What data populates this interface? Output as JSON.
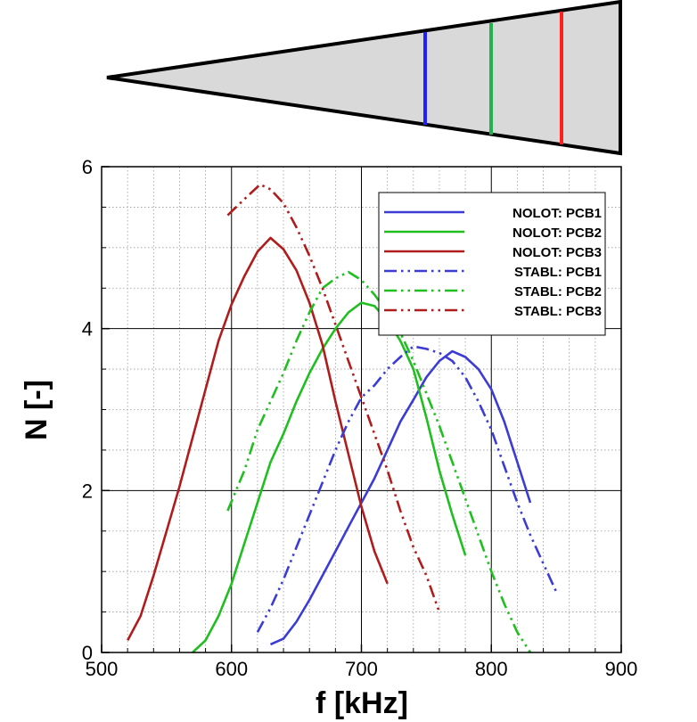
{
  "schematic": {
    "fill": "#d9d9d9",
    "markers": [
      {
        "name": "PCB1",
        "color": "#1f1fff"
      },
      {
        "name": "PCB2",
        "color": "#22b14c"
      },
      {
        "name": "PCB3",
        "color": "#ff1f1f"
      }
    ]
  },
  "chart_data": {
    "type": "line",
    "xlabel": "f [kHz]",
    "ylabel": "N [-]",
    "xlim": [
      500,
      900
    ],
    "ylim": [
      0,
      6
    ],
    "xticks": [
      "500",
      "600",
      "700",
      "800",
      "900"
    ],
    "yticks": [
      "0",
      "2",
      "4",
      "6"
    ],
    "grid": true,
    "legend_position": "top-right",
    "series": [
      {
        "name": "NOLOT: PCB1",
        "color": "#3b3bd6",
        "dash": "solid",
        "x": [
          630,
          640,
          650,
          660,
          670,
          680,
          690,
          700,
          710,
          720,
          730,
          740,
          750,
          760,
          770,
          780,
          790,
          800,
          810,
          820,
          830
        ],
        "y": [
          0.1,
          0.17,
          0.38,
          0.65,
          0.95,
          1.25,
          1.55,
          1.85,
          2.15,
          2.5,
          2.85,
          3.12,
          3.4,
          3.6,
          3.72,
          3.65,
          3.5,
          3.25,
          2.85,
          2.35,
          1.85
        ]
      },
      {
        "name": "NOLOT: PCB2",
        "color": "#1fbf1f",
        "dash": "solid",
        "x": [
          570,
          580,
          590,
          600,
          610,
          620,
          630,
          640,
          650,
          660,
          670,
          680,
          690,
          700,
          710,
          720,
          730,
          740,
          750,
          760,
          770,
          780
        ],
        "y": [
          0.0,
          0.15,
          0.45,
          0.85,
          1.35,
          1.85,
          2.35,
          2.7,
          3.1,
          3.45,
          3.75,
          4.0,
          4.2,
          4.32,
          4.28,
          4.1,
          3.85,
          3.5,
          2.9,
          2.25,
          1.7,
          1.2
        ]
      },
      {
        "name": "NOLOT: PCB3",
        "color": "#b01c1c",
        "dash": "solid",
        "x": [
          520,
          530,
          540,
          550,
          560,
          570,
          580,
          590,
          600,
          610,
          620,
          630,
          640,
          650,
          660,
          670,
          680,
          690,
          700,
          710,
          720
        ],
        "y": [
          0.15,
          0.45,
          0.95,
          1.5,
          2.05,
          2.65,
          3.25,
          3.85,
          4.3,
          4.65,
          4.95,
          5.12,
          4.98,
          4.72,
          4.32,
          3.8,
          3.1,
          2.45,
          1.8,
          1.25,
          0.85
        ]
      },
      {
        "name": "STABL: PCB1",
        "color": "#3b3bd6",
        "dash": "dashdotdot",
        "x": [
          620,
          630,
          640,
          650,
          660,
          670,
          680,
          690,
          700,
          710,
          720,
          730,
          740,
          750,
          760,
          770,
          780,
          790,
          800,
          810,
          820,
          830,
          840,
          850
        ],
        "y": [
          0.25,
          0.55,
          0.9,
          1.3,
          1.7,
          2.1,
          2.5,
          2.85,
          3.15,
          3.3,
          3.5,
          3.65,
          3.78,
          3.75,
          3.7,
          3.6,
          3.4,
          3.1,
          2.75,
          2.3,
          1.85,
          1.45,
          1.1,
          0.75
        ]
      },
      {
        "name": "STABL: PCB2",
        "color": "#1fbf1f",
        "dash": "dashdotdot",
        "x": [
          597,
          610,
          620,
          630,
          640,
          650,
          660,
          670,
          680,
          690,
          700,
          710,
          720,
          730,
          740,
          750,
          760,
          770,
          780,
          790,
          800,
          810,
          820,
          830
        ],
        "y": [
          1.75,
          2.25,
          2.75,
          3.1,
          3.45,
          3.85,
          4.2,
          4.5,
          4.62,
          4.7,
          4.6,
          4.42,
          4.2,
          3.95,
          3.6,
          3.2,
          2.8,
          2.35,
          1.9,
          1.45,
          1.0,
          0.6,
          0.25,
          0.0
        ]
      },
      {
        "name": "STABL: PCB3",
        "color": "#b01c1c",
        "dash": "dashdotdot",
        "x": [
          597,
          610,
          622,
          630,
          640,
          650,
          660,
          670,
          680,
          690,
          700,
          710,
          720,
          730,
          740,
          750,
          760
        ],
        "y": [
          5.4,
          5.6,
          5.78,
          5.72,
          5.55,
          5.25,
          4.9,
          4.5,
          4.05,
          3.6,
          3.15,
          2.7,
          2.25,
          1.75,
          1.3,
          0.95,
          0.5
        ]
      }
    ]
  }
}
